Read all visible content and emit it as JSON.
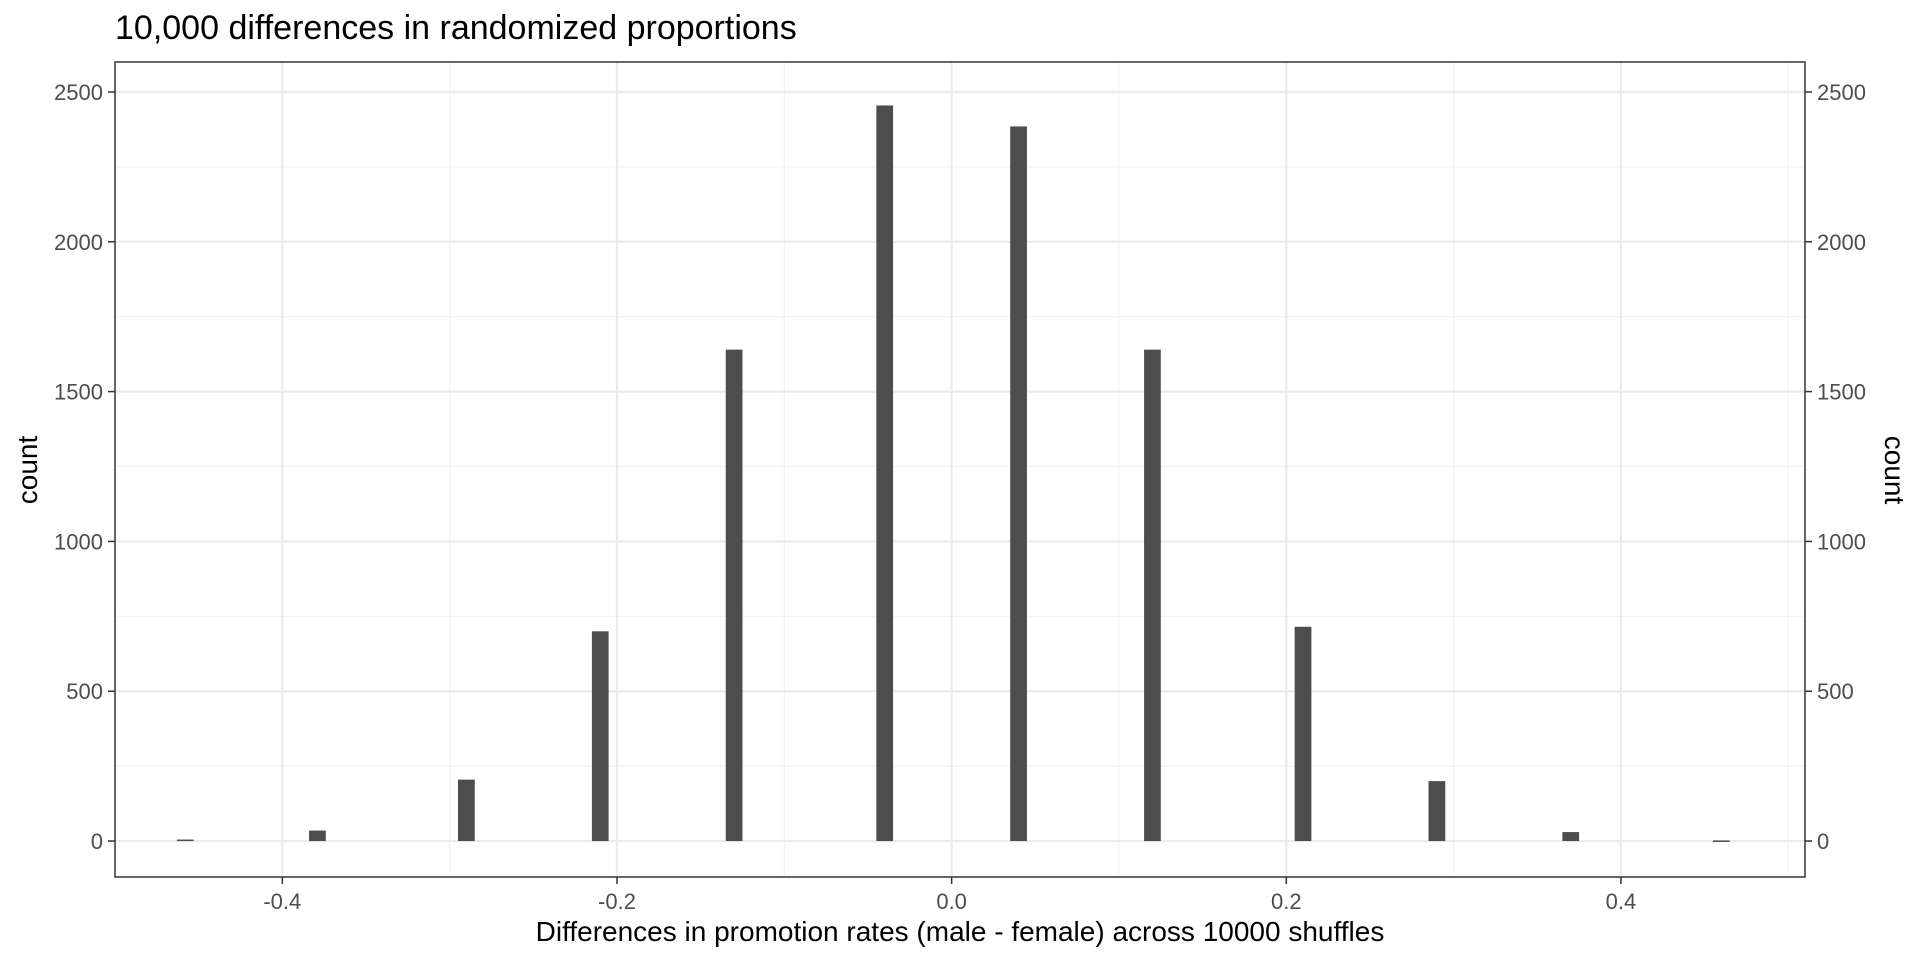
{
  "chart_data": {
    "type": "bar",
    "title": "10,000 differences in randomized proportions",
    "xlabel": "Differences in promotion rates (male - female) across 10000 shuffles",
    "ylabel": "count",
    "ylabel_right": "count",
    "xlim": [
      -0.5,
      0.51
    ],
    "ylim": [
      -120,
      2600
    ],
    "x_ticks": [
      -0.4,
      -0.2,
      0.0,
      0.2,
      0.4
    ],
    "x_tick_labels": [
      "-0.4",
      "-0.2",
      "0.0",
      "0.2",
      "0.4"
    ],
    "x_minor_ticks": [
      -0.3,
      -0.1,
      0.1,
      0.3,
      0.5
    ],
    "y_ticks": [
      0,
      500,
      1000,
      1500,
      2000,
      2500
    ],
    "y_tick_labels": [
      "0",
      "500",
      "1000",
      "1500",
      "2000",
      "2500"
    ],
    "y_minor_ticks": [
      250,
      750,
      1250,
      1750,
      2250
    ],
    "bar_width": 0.01,
    "x": [
      -0.458,
      -0.379,
      -0.29,
      -0.21,
      -0.13,
      -0.04,
      0.04,
      0.12,
      0.21,
      0.29,
      0.37,
      0.46
    ],
    "values": [
      5,
      35,
      205,
      700,
      1640,
      2455,
      2385,
      1640,
      715,
      200,
      30,
      2
    ],
    "bar_color": "#4d4d4d",
    "grid": true,
    "secondary_y_axis": true
  }
}
